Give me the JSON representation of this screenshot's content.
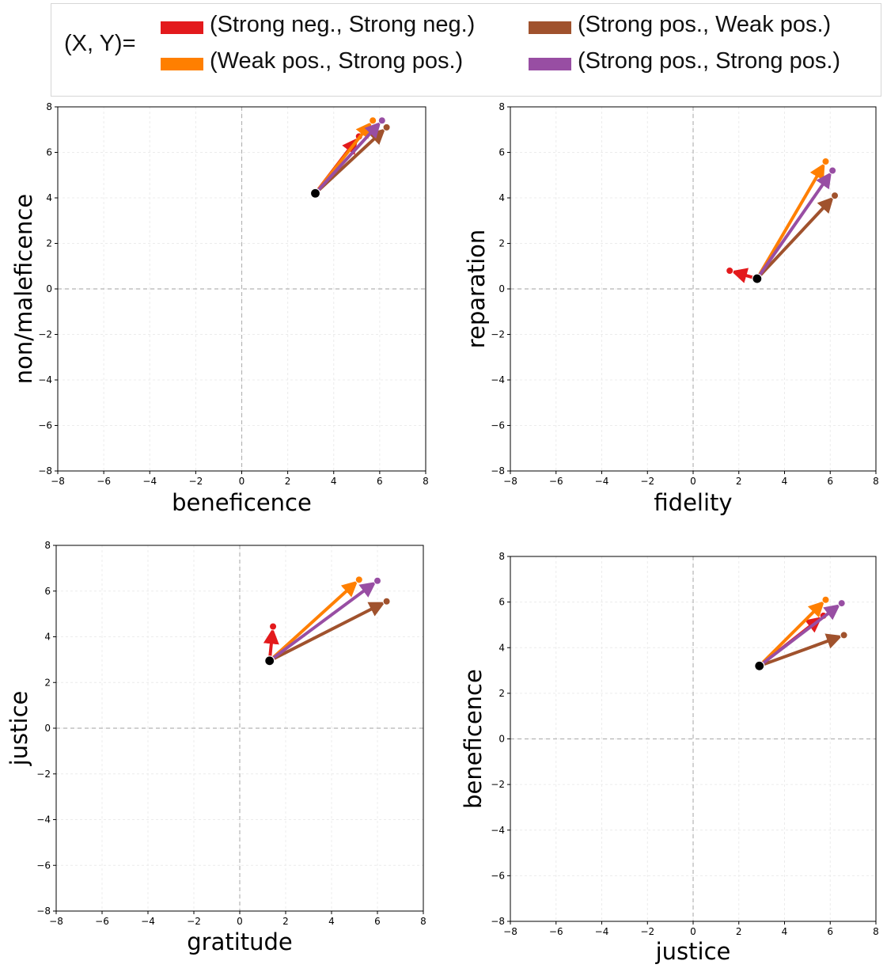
{
  "legend": {
    "prefix": "(X, Y)=",
    "entries": [
      {
        "label": "(Strong neg., Strong neg.)",
        "color": "#e31a1c"
      },
      {
        "label": "(Weak pos., Strong pos.)",
        "color": "#ff7f00"
      },
      {
        "label": "(Strong pos., Weak pos.)",
        "color": "#a0522d"
      },
      {
        "label": "(Strong pos., Strong pos.)",
        "color": "#984ea3"
      }
    ]
  },
  "chart_data": [
    {
      "type": "scatter",
      "xlabel": "beneficence",
      "ylabel": "non/maleficence",
      "xlim": [
        -8,
        8
      ],
      "ylim": [
        -8,
        8
      ],
      "ticks": [
        "−8",
        "−6",
        "−4",
        "−2",
        "0",
        "2",
        "4",
        "6",
        "8"
      ],
      "origin": [
        3.2,
        4.2
      ],
      "series": [
        {
          "name": "(Strong neg., Strong neg.)",
          "color": "#e31a1c",
          "end": [
            5.1,
            6.7
          ]
        },
        {
          "name": "(Weak pos., Strong pos.)",
          "color": "#ff7f00",
          "end": [
            5.7,
            7.4
          ]
        },
        {
          "name": "(Strong pos., Weak pos.)",
          "color": "#a0522d",
          "end": [
            6.3,
            7.1
          ]
        },
        {
          "name": "(Strong pos., Strong pos.)",
          "color": "#984ea3",
          "end": [
            6.1,
            7.4
          ]
        }
      ]
    },
    {
      "type": "scatter",
      "xlabel": "fidelity",
      "ylabel": "reparation",
      "xlim": [
        -8,
        8
      ],
      "ylim": [
        -8,
        8
      ],
      "ticks": [
        "−8",
        "−6",
        "−4",
        "−2",
        "0",
        "2",
        "4",
        "6",
        "8"
      ],
      "origin": [
        2.8,
        0.45
      ],
      "series": [
        {
          "name": "(Strong neg., Strong neg.)",
          "color": "#e31a1c",
          "end": [
            1.6,
            0.8
          ]
        },
        {
          "name": "(Weak pos., Strong pos.)",
          "color": "#ff7f00",
          "end": [
            5.8,
            5.6
          ]
        },
        {
          "name": "(Strong pos., Weak pos.)",
          "color": "#a0522d",
          "end": [
            6.2,
            4.1
          ]
        },
        {
          "name": "(Strong pos., Strong pos.)",
          "color": "#984ea3",
          "end": [
            6.1,
            5.2
          ]
        }
      ]
    },
    {
      "type": "scatter",
      "xlabel": "gratitude",
      "ylabel": "justice",
      "xlim": [
        -8,
        8
      ],
      "ylim": [
        -8,
        8
      ],
      "ticks": [
        "−8",
        "−6",
        "−4",
        "−2",
        "0",
        "2",
        "4",
        "6",
        "8"
      ],
      "origin": [
        1.3,
        2.95
      ],
      "series": [
        {
          "name": "(Strong neg., Strong neg.)",
          "color": "#e31a1c",
          "end": [
            1.45,
            4.45
          ]
        },
        {
          "name": "(Weak pos., Strong pos.)",
          "color": "#ff7f00",
          "end": [
            5.2,
            6.5
          ]
        },
        {
          "name": "(Strong pos., Weak pos.)",
          "color": "#a0522d",
          "end": [
            6.4,
            5.55
          ]
        },
        {
          "name": "(Strong pos., Strong pos.)",
          "color": "#984ea3",
          "end": [
            6.0,
            6.45
          ]
        }
      ]
    },
    {
      "type": "scatter",
      "xlabel": "justice",
      "ylabel": "beneficence",
      "xlim": [
        -8,
        8
      ],
      "ylim": [
        -8,
        8
      ],
      "ticks": [
        "−8",
        "−6",
        "−4",
        "−2",
        "0",
        "2",
        "4",
        "6",
        "8"
      ],
      "origin": [
        2.9,
        3.2
      ],
      "series": [
        {
          "name": "(Strong neg., Strong neg.)",
          "color": "#e31a1c",
          "end": [
            5.7,
            5.4
          ]
        },
        {
          "name": "(Weak pos., Strong pos.)",
          "color": "#ff7f00",
          "end": [
            5.8,
            6.1
          ]
        },
        {
          "name": "(Strong pos., Weak pos.)",
          "color": "#a0522d",
          "end": [
            6.6,
            4.55
          ]
        },
        {
          "name": "(Strong pos., Strong pos.)",
          "color": "#984ea3",
          "end": [
            6.5,
            5.95
          ]
        }
      ]
    }
  ]
}
